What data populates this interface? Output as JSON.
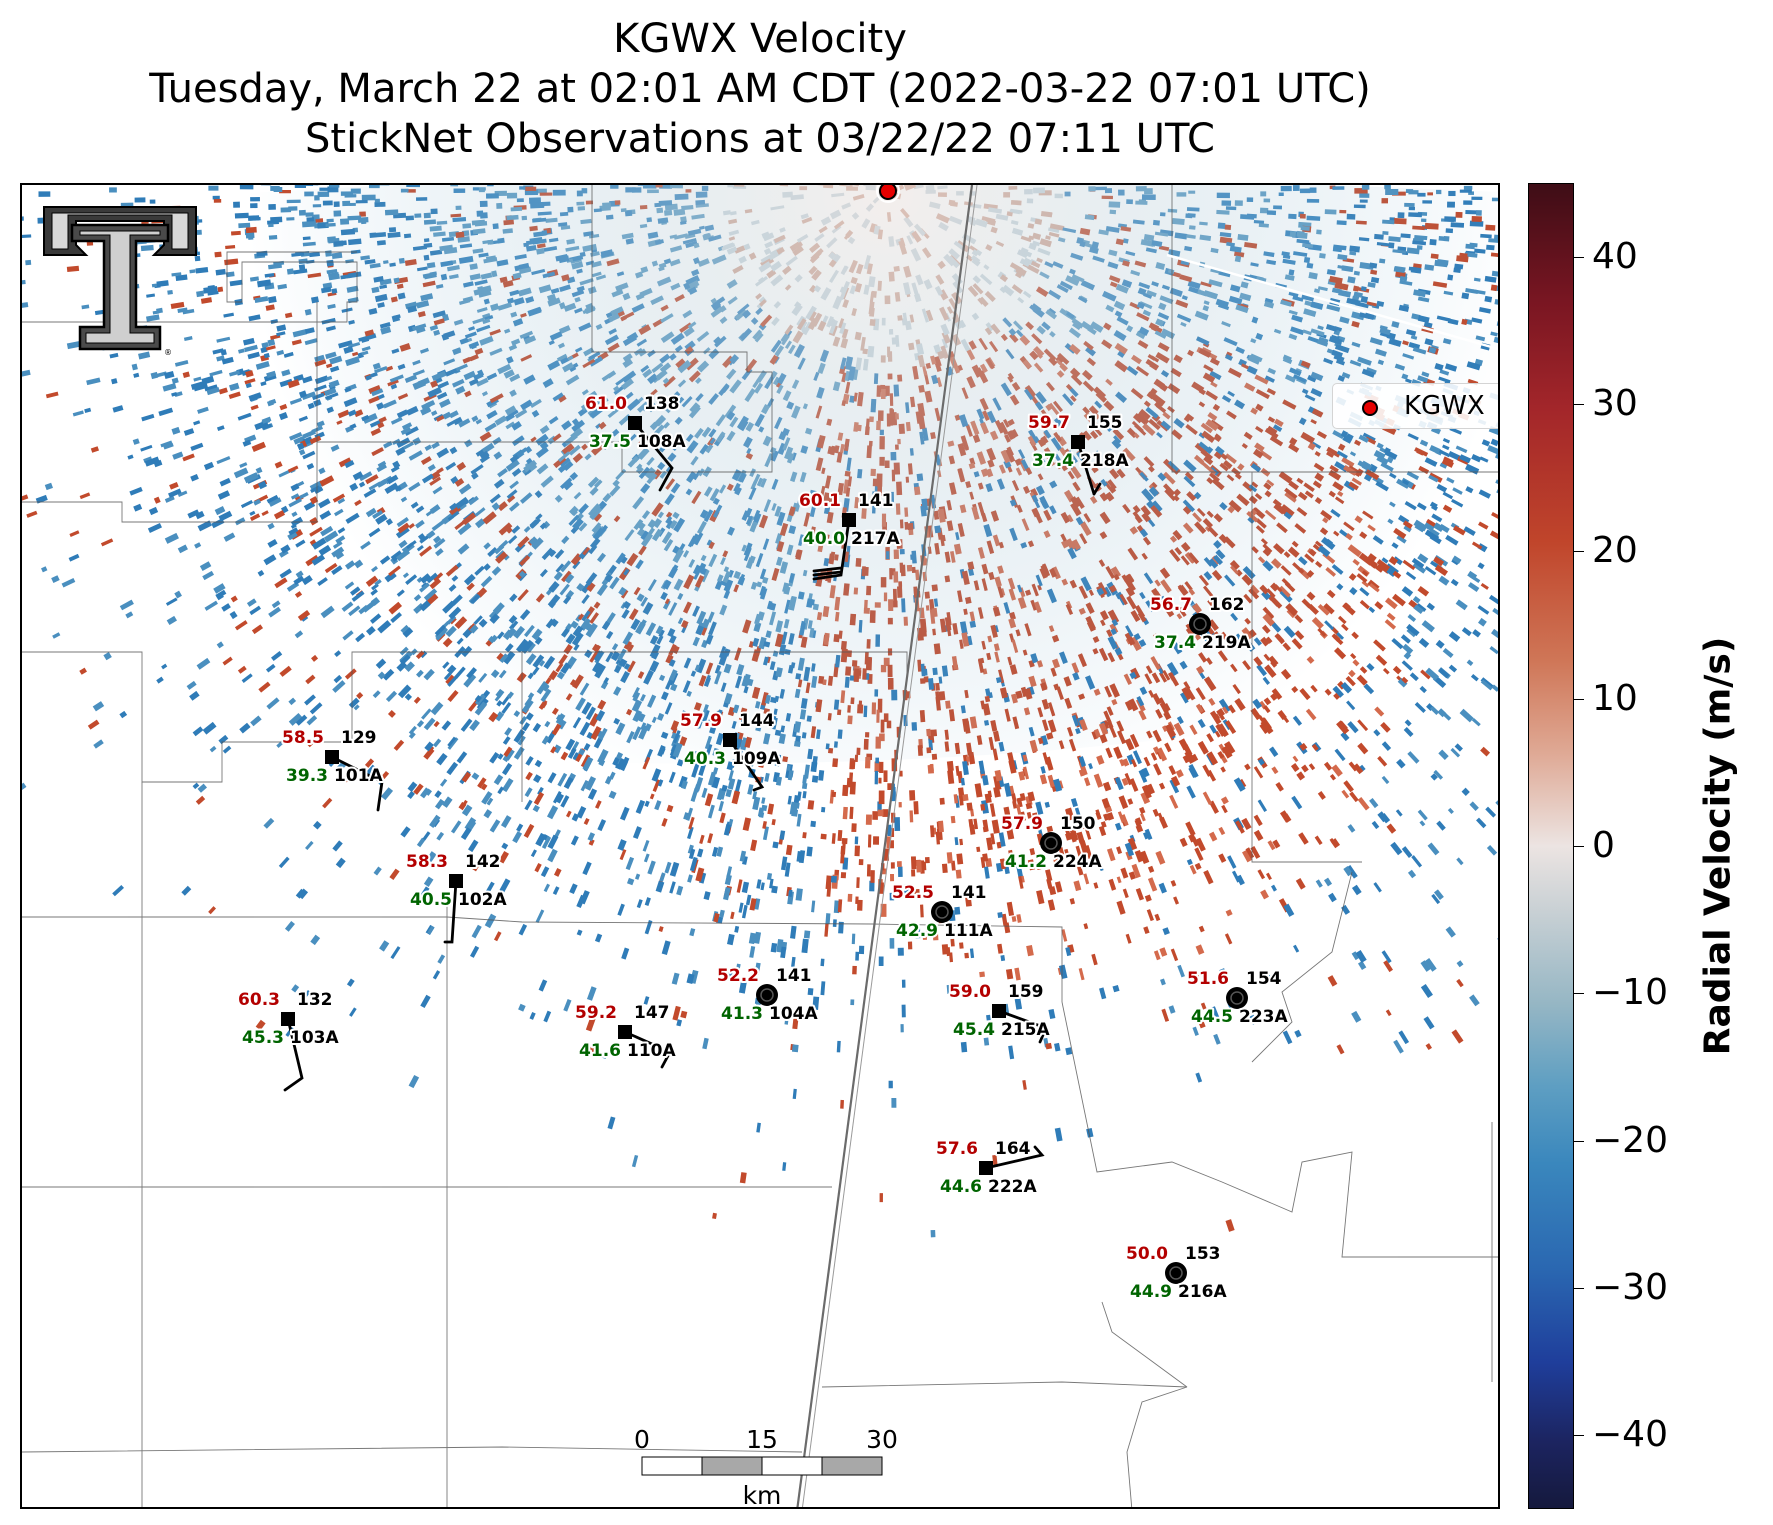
{
  "title": {
    "line1": "KGWX Velocity",
    "line2": "Tuesday, March 22 at 02:01 AM CDT (2022-03-22 07:01 UTC)",
    "line3": "StickNet Observations at 03/22/22 07:11 UTC"
  },
  "legend": {
    "label": "KGWX",
    "marker_color": "#e60000"
  },
  "colorbar": {
    "label": "Radial Velocity (m/s)",
    "range": [
      -45,
      45
    ],
    "ticks": [
      "40",
      "30",
      "20",
      "10",
      "0",
      "−10",
      "−20",
      "−30",
      "−40"
    ],
    "tick_values": [
      40,
      30,
      20,
      10,
      0,
      -10,
      -20,
      -30,
      -40
    ]
  },
  "scalebar": {
    "labels": [
      "0",
      "15",
      "30"
    ],
    "unit": "km"
  },
  "stations": [
    {
      "id": "108A",
      "temp": "61.0",
      "dir": "138",
      "dew": "37.5",
      "marker": "square"
    },
    {
      "id": "218A",
      "temp": "59.7",
      "dir": "155",
      "dew": "37.4",
      "marker": "square"
    },
    {
      "id": "217A",
      "temp": "60.1",
      "dir": "141",
      "dew": "40.0",
      "marker": "square"
    },
    {
      "id": "219A",
      "temp": "56.7",
      "dir": "162",
      "dew": "37.4",
      "marker": "circle"
    },
    {
      "id": "109A",
      "temp": "57.9",
      "dir": "144",
      "dew": "40.3",
      "marker": "square"
    },
    {
      "id": "101A",
      "temp": "58.5",
      "dir": "129",
      "dew": "39.3",
      "marker": "square"
    },
    {
      "id": "224A",
      "temp": "57.9",
      "dir": "150",
      "dew": "41.2",
      "marker": "circle"
    },
    {
      "id": "102A",
      "temp": "58.3",
      "dir": "142",
      "dew": "40.5",
      "marker": "square"
    },
    {
      "id": "111A",
      "temp": "52.5",
      "dir": "141",
      "dew": "42.9",
      "marker": "circle"
    },
    {
      "id": "104A",
      "temp": "52.2",
      "dir": "141",
      "dew": "41.3",
      "marker": "circle"
    },
    {
      "id": "103A",
      "temp": "60.3",
      "dir": "132",
      "dew": "45.3",
      "marker": "square"
    },
    {
      "id": "110A",
      "temp": "59.2",
      "dir": "147",
      "dew": "41.6",
      "marker": "square"
    },
    {
      "id": "215A",
      "temp": "59.0",
      "dir": "159",
      "dew": "45.4",
      "marker": "square"
    },
    {
      "id": "223A",
      "temp": "51.6",
      "dir": "154",
      "dew": "44.5",
      "marker": "circle"
    },
    {
      "id": "222A",
      "temp": "57.6",
      "dir": "164",
      "dew": "44.6",
      "marker": "square"
    },
    {
      "id": "216A",
      "temp": "50.0",
      "dir": "153",
      "dew": "44.9",
      "marker": "circle"
    }
  ],
  "colors": {
    "temp": "#b30000",
    "dew": "#006400",
    "inbound": "#2f7cb8",
    "outbound": "#c24a2c",
    "near_zero": "#e9e3e1"
  },
  "icons": {
    "logo": "texas-tech-double-t-logo",
    "radar": "radar-site-marker"
  }
}
